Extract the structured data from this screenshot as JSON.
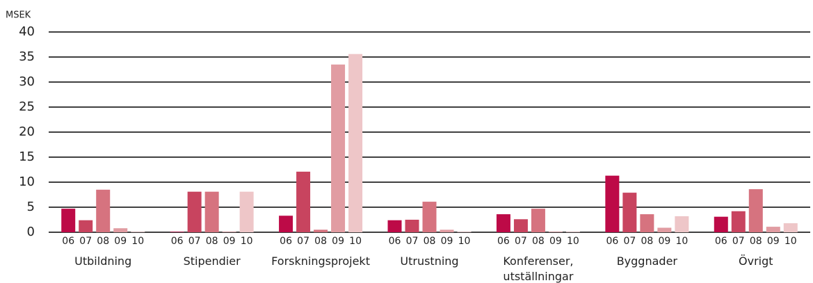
{
  "chart_data": {
    "type": "bar",
    "y_label": "MSEK",
    "categories": [
      "Utbildning",
      "Stipendier",
      "Forskningsprojekt",
      "Utrustning",
      "Konferenser, utställningar",
      "Byggnader",
      "Övrigt"
    ],
    "series": [
      {
        "name": "06",
        "color": "#bd0a47",
        "values": [
          4.7,
          0.1,
          3.3,
          2.4,
          3.6,
          11.3,
          3.1
        ]
      },
      {
        "name": "07",
        "color": "#c8445f",
        "values": [
          2.4,
          8.1,
          12.1,
          2.5,
          2.6,
          7.9,
          4.2
        ]
      },
      {
        "name": "08",
        "color": "#d6737f",
        "values": [
          8.5,
          8.1,
          0.5,
          6.1,
          4.7,
          3.6,
          8.6
        ]
      },
      {
        "name": "09",
        "color": "#e19ca2",
        "values": [
          0.8,
          0.1,
          33.5,
          0.5,
          0.1,
          0.9,
          1.1
        ]
      },
      {
        "name": "10",
        "color": "#eec6c8",
        "values": [
          0.1,
          8.1,
          35.6,
          0.1,
          0.1,
          3.2,
          1.8
        ]
      }
    ],
    "ylim": [
      0,
      40
    ],
    "yticks": [
      0,
      5,
      10,
      15,
      20,
      25,
      30,
      35,
      40
    ],
    "grid": true
  }
}
